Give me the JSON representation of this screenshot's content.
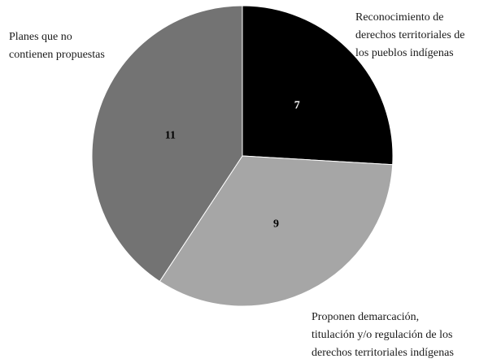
{
  "chart_data": {
    "type": "pie",
    "title": "",
    "start_angle_deg": 0,
    "direction": "clockwise",
    "legend": "none",
    "slices": [
      {
        "label_lines": [
          "Reconocimiento de",
          "derechos territoriales de",
          "los pueblos indígenas"
        ],
        "value": 7,
        "value_label": "7",
        "color": "#000000",
        "value_color": "#ffffff"
      },
      {
        "label_lines": [
          "Proponen demarcación,",
          "titulación y/o regulación de los",
          "derechos territoriales indígenas"
        ],
        "value": 9,
        "value_label": "9",
        "color": "#a6a6a6",
        "value_color": "#000000"
      },
      {
        "label_lines": [
          "Planes que no",
          "contienen propuestas"
        ],
        "value": 11,
        "value_label": "11",
        "color": "#737373",
        "value_color": "#000000"
      }
    ]
  }
}
